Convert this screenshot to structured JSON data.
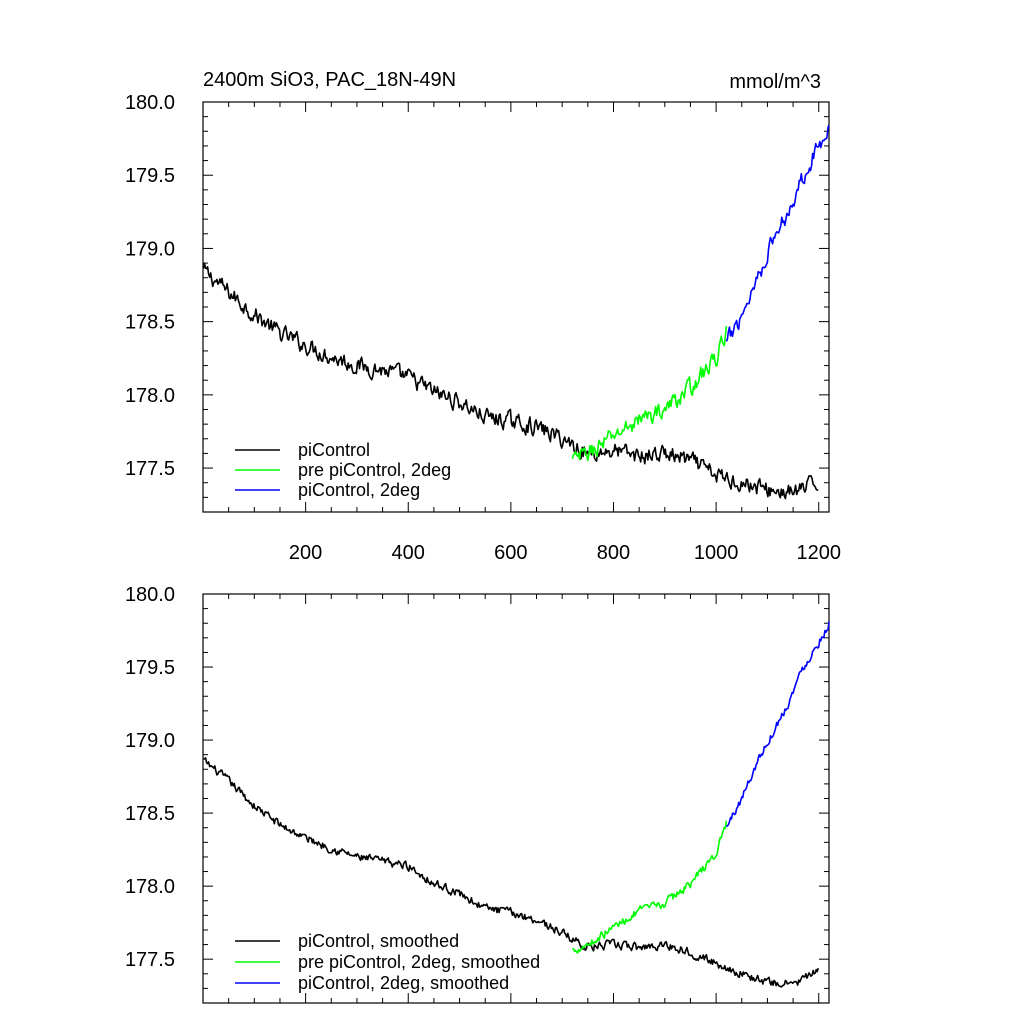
{
  "chart_data": [
    {
      "type": "line",
      "title": "2400m SiO3, PAC_18N-49N",
      "units": "mmol/m^3",
      "xlim": [
        0,
        1220
      ],
      "ylim": [
        177.2,
        180.0
      ],
      "xticks": [
        200,
        400,
        600,
        800,
        1000,
        1200
      ],
      "yticks": [
        177.5,
        178.0,
        178.5,
        179.0,
        179.5,
        180.0
      ],
      "ytick_labels": [
        "177.5",
        "178.0",
        "178.5",
        "179.0",
        "179.5",
        "180.0"
      ],
      "xtick_labels": [
        "200",
        "400",
        "600",
        "800",
        "1000",
        "1200"
      ],
      "legend_position": "bottom-left",
      "series": [
        {
          "name": "piControl",
          "color": "#000000",
          "x": [
            1,
            50,
            100,
            150,
            200,
            250,
            300,
            350,
            400,
            450,
            500,
            550,
            600,
            650,
            700,
            750,
            800,
            850,
            900,
            950,
            1000,
            1050,
            1100,
            1150,
            1200
          ],
          "y": [
            178.85,
            178.7,
            178.55,
            178.42,
            178.34,
            178.26,
            178.2,
            178.17,
            178.12,
            178.02,
            177.95,
            177.85,
            177.82,
            177.78,
            177.7,
            177.6,
            177.62,
            177.58,
            177.6,
            177.55,
            177.45,
            177.4,
            177.35,
            177.33,
            177.4
          ],
          "noise": 0.05
        },
        {
          "name": "pre piControl, 2deg",
          "color": "#00ff00",
          "x": [
            720,
            760,
            800,
            850,
            900,
            950,
            1000,
            1020
          ],
          "y": [
            177.55,
            177.62,
            177.72,
            177.83,
            177.9,
            178.05,
            178.25,
            178.43
          ],
          "noise": 0.05
        },
        {
          "name": "piControl, 2deg",
          "color": "#0000ff",
          "x": [
            1020,
            1050,
            1080,
            1110,
            1140,
            1170,
            1200,
            1220
          ],
          "y": [
            178.35,
            178.55,
            178.8,
            179.05,
            179.25,
            179.5,
            179.7,
            179.85
          ],
          "noise": 0.05
        }
      ]
    },
    {
      "type": "line",
      "title": "",
      "xlim": [
        0,
        1220
      ],
      "ylim": [
        177.2,
        180.0
      ],
      "xticks": [
        200,
        400,
        600,
        800,
        1000,
        1200
      ],
      "yticks": [
        177.5,
        178.0,
        178.5,
        179.0,
        179.5,
        180.0
      ],
      "ytick_labels": [
        "177.5",
        "178.0",
        "178.5",
        "179.0",
        "179.5",
        "180.0"
      ],
      "legend_position": "bottom-left",
      "series": [
        {
          "name": "piControl, smoothed",
          "color": "#000000",
          "x": [
            1,
            50,
            100,
            150,
            200,
            250,
            300,
            350,
            400,
            450,
            500,
            550,
            600,
            650,
            700,
            750,
            800,
            850,
            900,
            950,
            1000,
            1050,
            1100,
            1150,
            1200
          ],
          "y": [
            178.86,
            178.72,
            178.55,
            178.42,
            178.33,
            178.26,
            178.2,
            178.17,
            178.14,
            178.02,
            177.95,
            177.85,
            177.82,
            177.77,
            177.68,
            177.58,
            177.6,
            177.58,
            177.6,
            177.55,
            177.47,
            177.4,
            177.34,
            177.33,
            177.42
          ],
          "noise": 0.025
        },
        {
          "name": "pre piControl, 2deg, smoothed",
          "color": "#00ff00",
          "x": [
            720,
            760,
            800,
            850,
            900,
            950,
            1000,
            1020
          ],
          "y": [
            177.56,
            177.62,
            177.72,
            177.83,
            177.88,
            178.02,
            178.22,
            178.44
          ],
          "noise": 0.025
        },
        {
          "name": "piControl, 2deg, smoothed",
          "color": "#0000ff",
          "x": [
            1020,
            1050,
            1080,
            1110,
            1140,
            1170,
            1200,
            1220
          ],
          "y": [
            178.4,
            178.6,
            178.85,
            179.05,
            179.25,
            179.5,
            179.67,
            179.8
          ],
          "noise": 0.025
        }
      ]
    }
  ]
}
